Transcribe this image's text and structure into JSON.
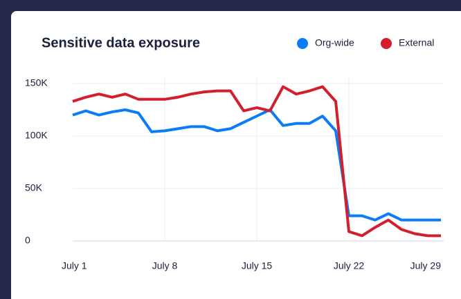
{
  "chart_data": {
    "type": "line",
    "title": "Sensitive data exposure",
    "x": [
      1,
      2,
      3,
      4,
      5,
      6,
      7,
      8,
      9,
      10,
      11,
      12,
      13,
      14,
      15,
      16,
      17,
      18,
      19,
      20,
      21,
      22,
      23,
      24,
      25,
      26,
      27,
      28,
      29
    ],
    "xlim": [
      1,
      29
    ],
    "xticks": [
      {
        "value": 1,
        "label": "July 1"
      },
      {
        "value": 8,
        "label": "July 8"
      },
      {
        "value": 15,
        "label": "July 15"
      },
      {
        "value": 22,
        "label": "July 22"
      },
      {
        "value": 29,
        "label": "July 29"
      }
    ],
    "ylim": [
      0,
      150000
    ],
    "yticks": [
      {
        "value": 0,
        "label": "0"
      },
      {
        "value": 50000,
        "label": "50K"
      },
      {
        "value": 100000,
        "label": "100K"
      },
      {
        "value": 150000,
        "label": "150K"
      }
    ],
    "grid": true,
    "legend": "top-right",
    "series": [
      {
        "name": "Org-wide",
        "color": "#0a7cf5",
        "values": [
          120000,
          124000,
          120000,
          123000,
          125000,
          122000,
          104000,
          105000,
          107000,
          109000,
          109000,
          105000,
          107000,
          113000,
          119000,
          125000,
          110000,
          112000,
          112000,
          119000,
          105000,
          24000,
          24000,
          20000,
          26000,
          20000,
          20000,
          20000,
          20000
        ]
      },
      {
        "name": "External",
        "color": "#d11f2e",
        "values": [
          133000,
          137000,
          140000,
          137000,
          140000,
          135000,
          135000,
          135000,
          137000,
          140000,
          142000,
          143000,
          143000,
          124000,
          127000,
          124000,
          147000,
          140000,
          143000,
          147000,
          133000,
          9000,
          5000,
          13000,
          20000,
          11000,
          7000,
          5000,
          5000
        ]
      }
    ]
  }
}
